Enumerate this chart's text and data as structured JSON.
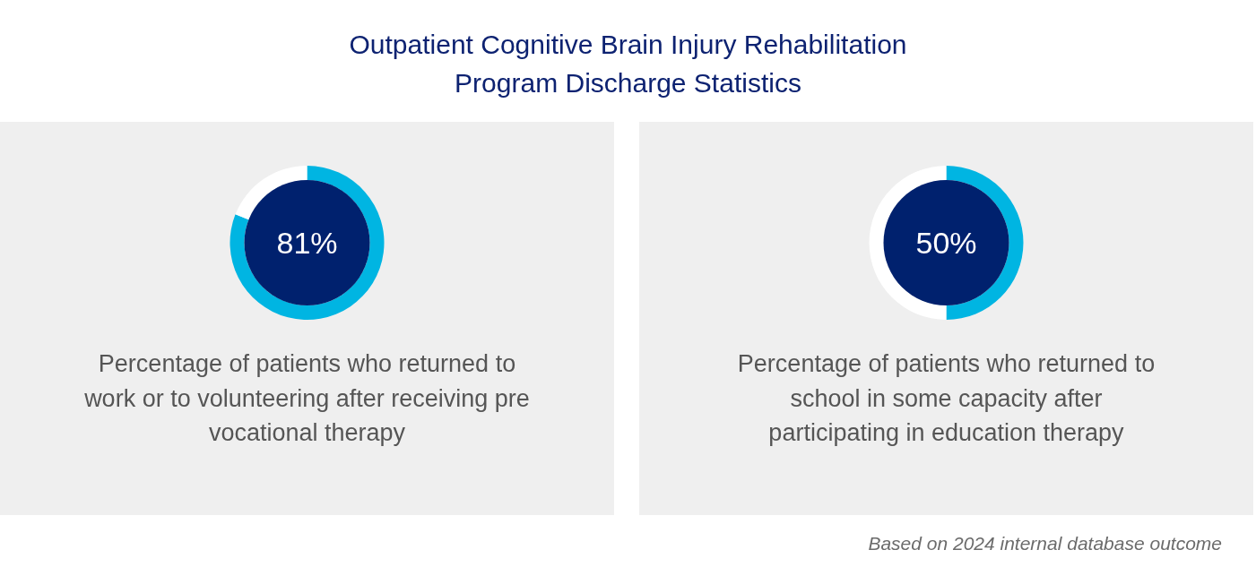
{
  "chart_data": [
    {
      "type": "donut",
      "title": "Outpatient Cognitive Brain Injury Rehabilitation Program Discharge Statistics",
      "categories": [
        null,
        null
      ],
      "values": [
        81,
        19
      ],
      "colors": [
        "#00b5e2",
        "#ffffff"
      ],
      "value_labels": [
        "81%",
        null
      ],
      "annotations": [
        "Percentage of patients who returned to work or to volunteering after receiving pre vocational therapy"
      ]
    },
    {
      "type": "donut",
      "categories": [
        null,
        null
      ],
      "values": [
        50,
        50
      ],
      "colors": [
        "#00b5e2",
        "#ffffff"
      ],
      "value_labels": [
        "50%",
        null
      ],
      "annotations": [
        "Percentage of patients who returned to school in some capacity after participating in education therapy",
        "Based on 2024 internal database outcome"
      ]
    }
  ]
}
